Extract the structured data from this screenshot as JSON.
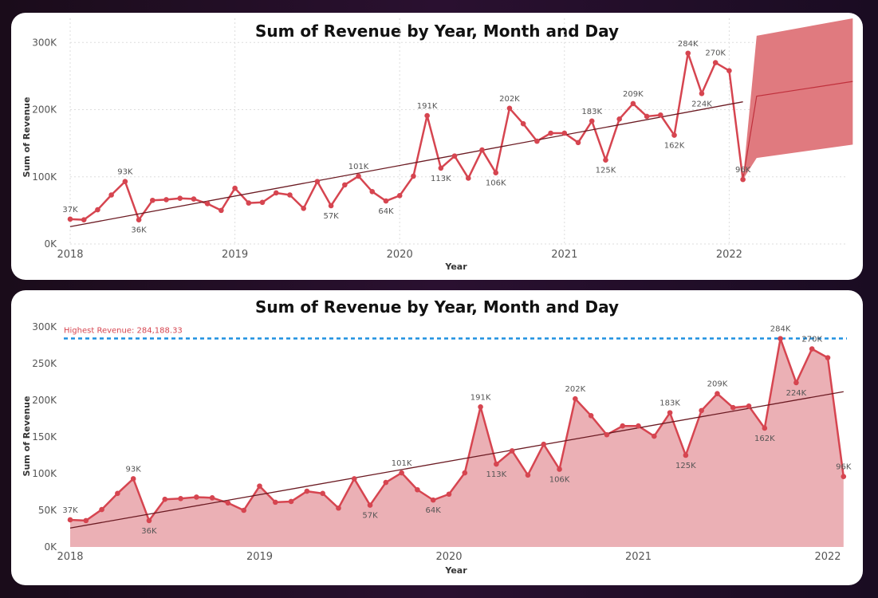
{
  "colors": {
    "series": "#d64550",
    "area_fill": "#ebb0b5",
    "forecast_band": "#e07a7f",
    "trend": "#6b1a22",
    "reference_line": "#1e90e0",
    "grid": "#dddddd"
  },
  "chart_data": [
    {
      "type": "line",
      "title": "Sum of Revenue by Year, Month and Day",
      "xlabel": "Year",
      "ylabel": "Sum of Revenue",
      "x_ticks": [
        "2018",
        "2019",
        "2020",
        "2021",
        "2022"
      ],
      "y_ticks": [
        "0K",
        "100K",
        "200K",
        "300K"
      ],
      "ylim": [
        0,
        330000
      ],
      "grid": true,
      "trendline": true,
      "series": [
        {
          "x": [
            "2018-01",
            "2018-02",
            "2018-03",
            "2018-04",
            "2018-05",
            "2018-06",
            "2018-07",
            "2018-08",
            "2018-09",
            "2018-10",
            "2018-11",
            "2018-12",
            "2019-01",
            "2019-02",
            "2019-03",
            "2019-04",
            "2019-05",
            "2019-06",
            "2019-07",
            "2019-08",
            "2019-09",
            "2019-10",
            "2019-11",
            "2019-12",
            "2020-01",
            "2020-02",
            "2020-03",
            "2020-04",
            "2020-05",
            "2020-06",
            "2020-07",
            "2020-08",
            "2020-09",
            "2020-10",
            "2020-11",
            "2020-12",
            "2021-01",
            "2021-02",
            "2021-03",
            "2021-04",
            "2021-05",
            "2021-06",
            "2021-07",
            "2021-08",
            "2021-09",
            "2021-10",
            "2021-11",
            "2021-12",
            "2022-01",
            "2022-02"
          ],
          "values": [
            37000,
            36000,
            51000,
            73000,
            93000,
            36000,
            65000,
            66000,
            68000,
            67000,
            60000,
            50000,
            83000,
            61000,
            62000,
            76000,
            73000,
            53000,
            93000,
            57000,
            88000,
            101000,
            78000,
            64000,
            72000,
            101000,
            191000,
            113000,
            131000,
            98000,
            140000,
            106000,
            202000,
            179000,
            153000,
            165000,
            165000,
            151000,
            183000,
            125000,
            186000,
            209000,
            190000,
            192000,
            162000,
            284000,
            224000,
            270000,
            258000,
            96000
          ],
          "data_labels": {
            "2018-01": "37K",
            "2018-05": "93K",
            "2018-06": "36K",
            "2019-08": "57K",
            "2019-10": "101K",
            "2019-12": "64K",
            "2020-03": "191K",
            "2020-04": "113K",
            "2020-08": "106K",
            "2020-09": "202K",
            "2021-03": "183K",
            "2021-04": "125K",
            "2021-06": "209K",
            "2021-09": "162K",
            "2021-10": "284K",
            "2021-11": "224K",
            "2021-12": "270K",
            "2022-02": "96K"
          }
        }
      ],
      "forecast": {
        "x": [
          "2022-02",
          "2022-03",
          "2022-10"
        ],
        "values": [
          96000,
          220000,
          242000
        ],
        "upper": [
          96000,
          310000,
          336000
        ],
        "lower": [
          96000,
          128000,
          148000
        ]
      }
    },
    {
      "type": "area",
      "title": "Sum of Revenue by Year, Month and Day",
      "xlabel": "Year",
      "ylabel": "Sum of Revenue",
      "x_ticks": [
        "2018",
        "2019",
        "2020",
        "2021",
        "2022"
      ],
      "y_ticks": [
        "0K",
        "50K",
        "100K",
        "150K",
        "200K",
        "250K",
        "300K"
      ],
      "ylim": [
        0,
        300000
      ],
      "grid": false,
      "trendline": true,
      "reference_line": {
        "label": "Highest Revenue: 284,188.33",
        "value": 284188.33
      },
      "series": [
        {
          "x": [
            "2018-01",
            "2018-02",
            "2018-03",
            "2018-04",
            "2018-05",
            "2018-06",
            "2018-07",
            "2018-08",
            "2018-09",
            "2018-10",
            "2018-11",
            "2018-12",
            "2019-01",
            "2019-02",
            "2019-03",
            "2019-04",
            "2019-05",
            "2019-06",
            "2019-07",
            "2019-08",
            "2019-09",
            "2019-10",
            "2019-11",
            "2019-12",
            "2020-01",
            "2020-02",
            "2020-03",
            "2020-04",
            "2020-05",
            "2020-06",
            "2020-07",
            "2020-08",
            "2020-09",
            "2020-10",
            "2020-11",
            "2020-12",
            "2021-01",
            "2021-02",
            "2021-03",
            "2021-04",
            "2021-05",
            "2021-06",
            "2021-07",
            "2021-08",
            "2021-09",
            "2021-10",
            "2021-11",
            "2021-12",
            "2022-01",
            "2022-02"
          ],
          "values": [
            37000,
            36000,
            51000,
            73000,
            93000,
            36000,
            65000,
            66000,
            68000,
            67000,
            60000,
            50000,
            83000,
            61000,
            62000,
            76000,
            73000,
            53000,
            93000,
            57000,
            88000,
            101000,
            78000,
            64000,
            72000,
            101000,
            191000,
            113000,
            131000,
            98000,
            140000,
            106000,
            202000,
            179000,
            153000,
            165000,
            165000,
            151000,
            183000,
            125000,
            186000,
            209000,
            190000,
            192000,
            162000,
            284000,
            224000,
            270000,
            258000,
            96000
          ],
          "data_labels": {
            "2018-01": "37K",
            "2018-05": "93K",
            "2018-06": "36K",
            "2019-08": "57K",
            "2019-10": "101K",
            "2019-12": "64K",
            "2020-03": "191K",
            "2020-04": "113K",
            "2020-08": "106K",
            "2020-09": "202K",
            "2021-03": "183K",
            "2021-04": "125K",
            "2021-06": "209K",
            "2021-09": "162K",
            "2021-10": "284K",
            "2021-11": "224K",
            "2021-12": "270K",
            "2022-02": "96K"
          }
        }
      ]
    }
  ]
}
